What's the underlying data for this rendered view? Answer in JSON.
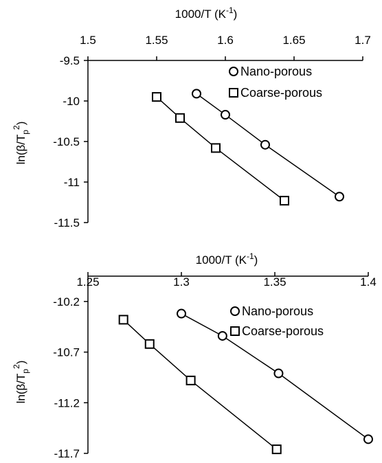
{
  "chart_data": [
    {
      "type": "scatter",
      "xlabel_main": "1000/T (K",
      "xlabel_sup": "-1",
      "xlabel_end": ")",
      "ylabel_pre": "ln(β/T",
      "ylabel_sub": "p",
      "ylabel_sup": "2",
      "ylabel_end": ")",
      "x_ticks": [
        "1.5",
        "1.55",
        "1.6",
        "1.65",
        "1.7"
      ],
      "y_ticks": [
        "-9.5",
        "-10",
        "-10.5",
        "-11",
        "-11.5"
      ],
      "xlim": [
        1.5,
        1.7
      ],
      "ylim": [
        -11.5,
        -9.5
      ],
      "legend_position": "top-right",
      "series": [
        {
          "name": "Nano-porous",
          "marker": "circle",
          "x": [
            1.579,
            1.6,
            1.629,
            1.683
          ],
          "y": [
            -9.91,
            -10.17,
            -10.54,
            -11.18
          ]
        },
        {
          "name": "Coarse-porous",
          "marker": "square",
          "x": [
            1.55,
            1.567,
            1.593,
            1.643
          ],
          "y": [
            -9.95,
            -10.21,
            -10.58,
            -11.23
          ]
        }
      ]
    },
    {
      "type": "scatter",
      "xlabel_main": "1000/T (K",
      "xlabel_sup": "-1",
      "xlabel_end": ")",
      "ylabel_pre": "ln(β/T",
      "ylabel_sub": "p",
      "ylabel_sup": "2",
      "ylabel_end": ")",
      "x_ticks": [
        "1.25",
        "1.3",
        "1.35",
        "1.4"
      ],
      "y_ticks": [
        "-10.2",
        "-10.7",
        "-11.2",
        "-11.7"
      ],
      "xlim": [
        1.25,
        1.4
      ],
      "ylim": [
        -11.7,
        -9.95
      ],
      "legend_position": "top-right",
      "series": [
        {
          "name": "Nano-porous",
          "marker": "circle",
          "x": [
            1.3,
            1.322,
            1.352,
            1.4
          ],
          "y": [
            -10.32,
            -10.54,
            -10.91,
            -11.56
          ]
        },
        {
          "name": "Coarse-porous",
          "marker": "square",
          "x": [
            1.269,
            1.283,
            1.305,
            1.351
          ],
          "y": [
            -10.38,
            -10.62,
            -10.98,
            -11.66
          ]
        }
      ]
    }
  ]
}
